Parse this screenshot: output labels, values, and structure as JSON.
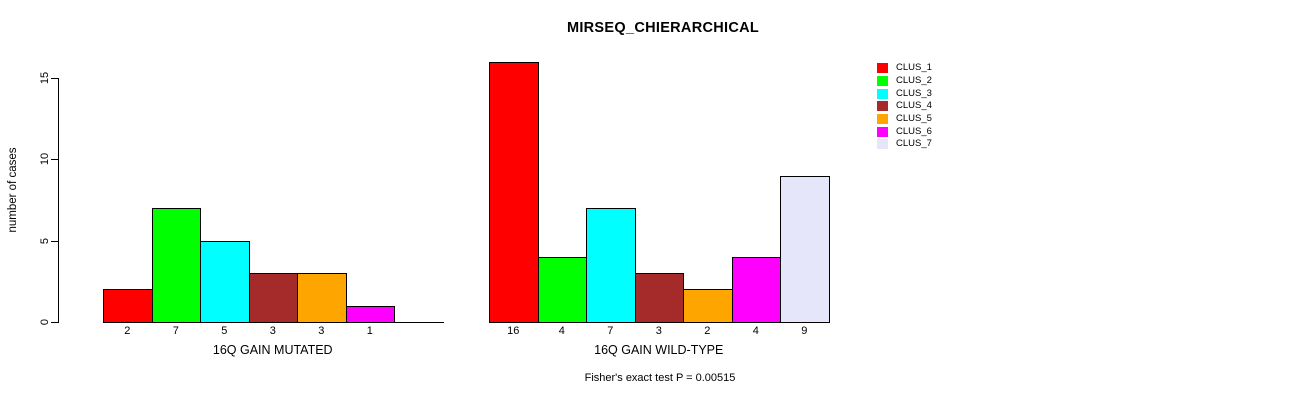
{
  "title": "MIRSEQ_CHIERARCHICAL",
  "ylabel": "number of cases",
  "annotation": "Fisher's exact test P = 0.00515",
  "legend": {
    "entries": [
      {
        "label": "CLUS_1",
        "color": "#FF0000"
      },
      {
        "label": "CLUS_2",
        "color": "#00FF00"
      },
      {
        "label": "CLUS_3",
        "color": "#00FFFF"
      },
      {
        "label": "CLUS_4",
        "color": "#A52A2A"
      },
      {
        "label": "CLUS_5",
        "color": "#FFA500"
      },
      {
        "label": "CLUS_6",
        "color": "#FF00FF"
      },
      {
        "label": "CLUS_7",
        "color": "#E6E6FA"
      }
    ]
  },
  "chart_data": [
    {
      "type": "bar",
      "title": "MIRSEQ_CHIERARCHICAL",
      "xlabel": "16Q GAIN MUTATED",
      "ylabel": "number of cases",
      "categories": [
        "CLUS_1",
        "CLUS_2",
        "CLUS_3",
        "CLUS_4",
        "CLUS_5",
        "CLUS_6"
      ],
      "values": [
        2,
        7,
        5,
        3,
        3,
        1
      ],
      "colors": [
        "#FF0000",
        "#00FF00",
        "#00FFFF",
        "#A52A2A",
        "#FFA500",
        "#FF00FF"
      ],
      "ylim": [
        0,
        16
      ],
      "yticks": [
        0,
        5,
        10,
        15
      ],
      "slots": 7,
      "grid": false,
      "legend_position": "right"
    },
    {
      "type": "bar",
      "xlabel": "16Q GAIN WILD-TYPE",
      "categories": [
        "CLUS_1",
        "CLUS_2",
        "CLUS_3",
        "CLUS_4",
        "CLUS_5",
        "CLUS_6",
        "CLUS_7"
      ],
      "values": [
        16,
        4,
        7,
        3,
        2,
        4,
        9
      ],
      "colors": [
        "#FF0000",
        "#00FF00",
        "#00FFFF",
        "#A52A2A",
        "#FFA500",
        "#FF00FF",
        "#E6E6FA"
      ],
      "ylim": [
        0,
        16
      ],
      "yticks": [
        0,
        5,
        10,
        15
      ],
      "slots": 7,
      "grid": false
    }
  ]
}
